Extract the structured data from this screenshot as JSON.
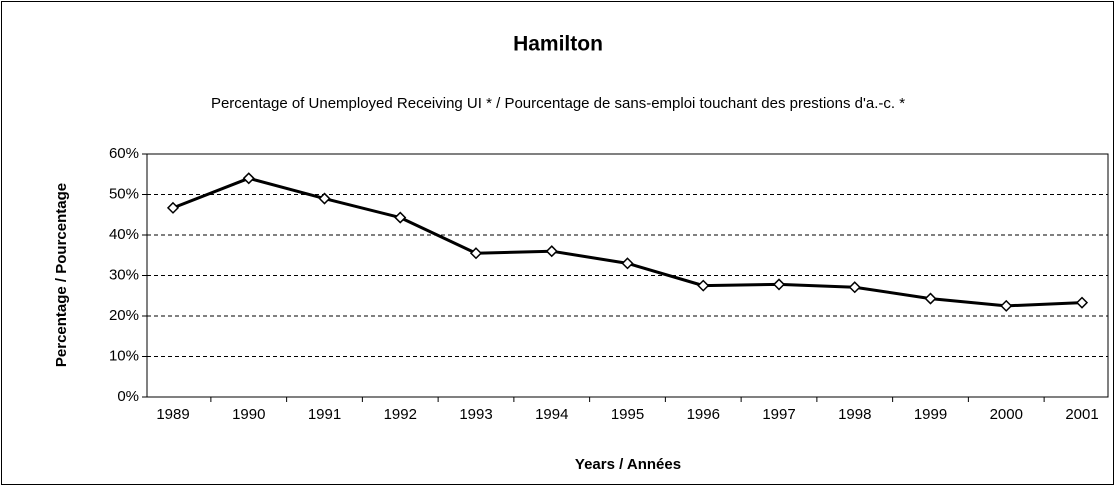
{
  "chart_data": {
    "type": "line",
    "title": "Hamilton",
    "subtitle": "Percentage of Unemployed Receiving UI * / Pourcentage de sans-emploi touchant des prestions d'a.-c. *",
    "x_label": "Years / Années",
    "y_label": "Percentage / Pourcentage",
    "categories": [
      "1989",
      "1990",
      "1991",
      "1992",
      "1993",
      "1994",
      "1995",
      "1996",
      "1997",
      "1998",
      "1999",
      "2000",
      "2001"
    ],
    "values": [
      46.7,
      54,
      49,
      44.3,
      35.5,
      36,
      33,
      27.5,
      27.8,
      27.1,
      24.3,
      22.5,
      23.3
    ],
    "color": "#000000",
    "ylim": [
      0,
      60
    ],
    "yticks": [
      {
        "value": 0,
        "label": "0%"
      },
      {
        "value": 10,
        "label": "10%"
      },
      {
        "value": 20,
        "label": "20%"
      },
      {
        "value": 30,
        "label": "30%"
      },
      {
        "value": 40,
        "label": "40%"
      },
      {
        "value": 50,
        "label": "50%"
      },
      {
        "value": 60,
        "label": "60%"
      }
    ],
    "grid": true
  }
}
